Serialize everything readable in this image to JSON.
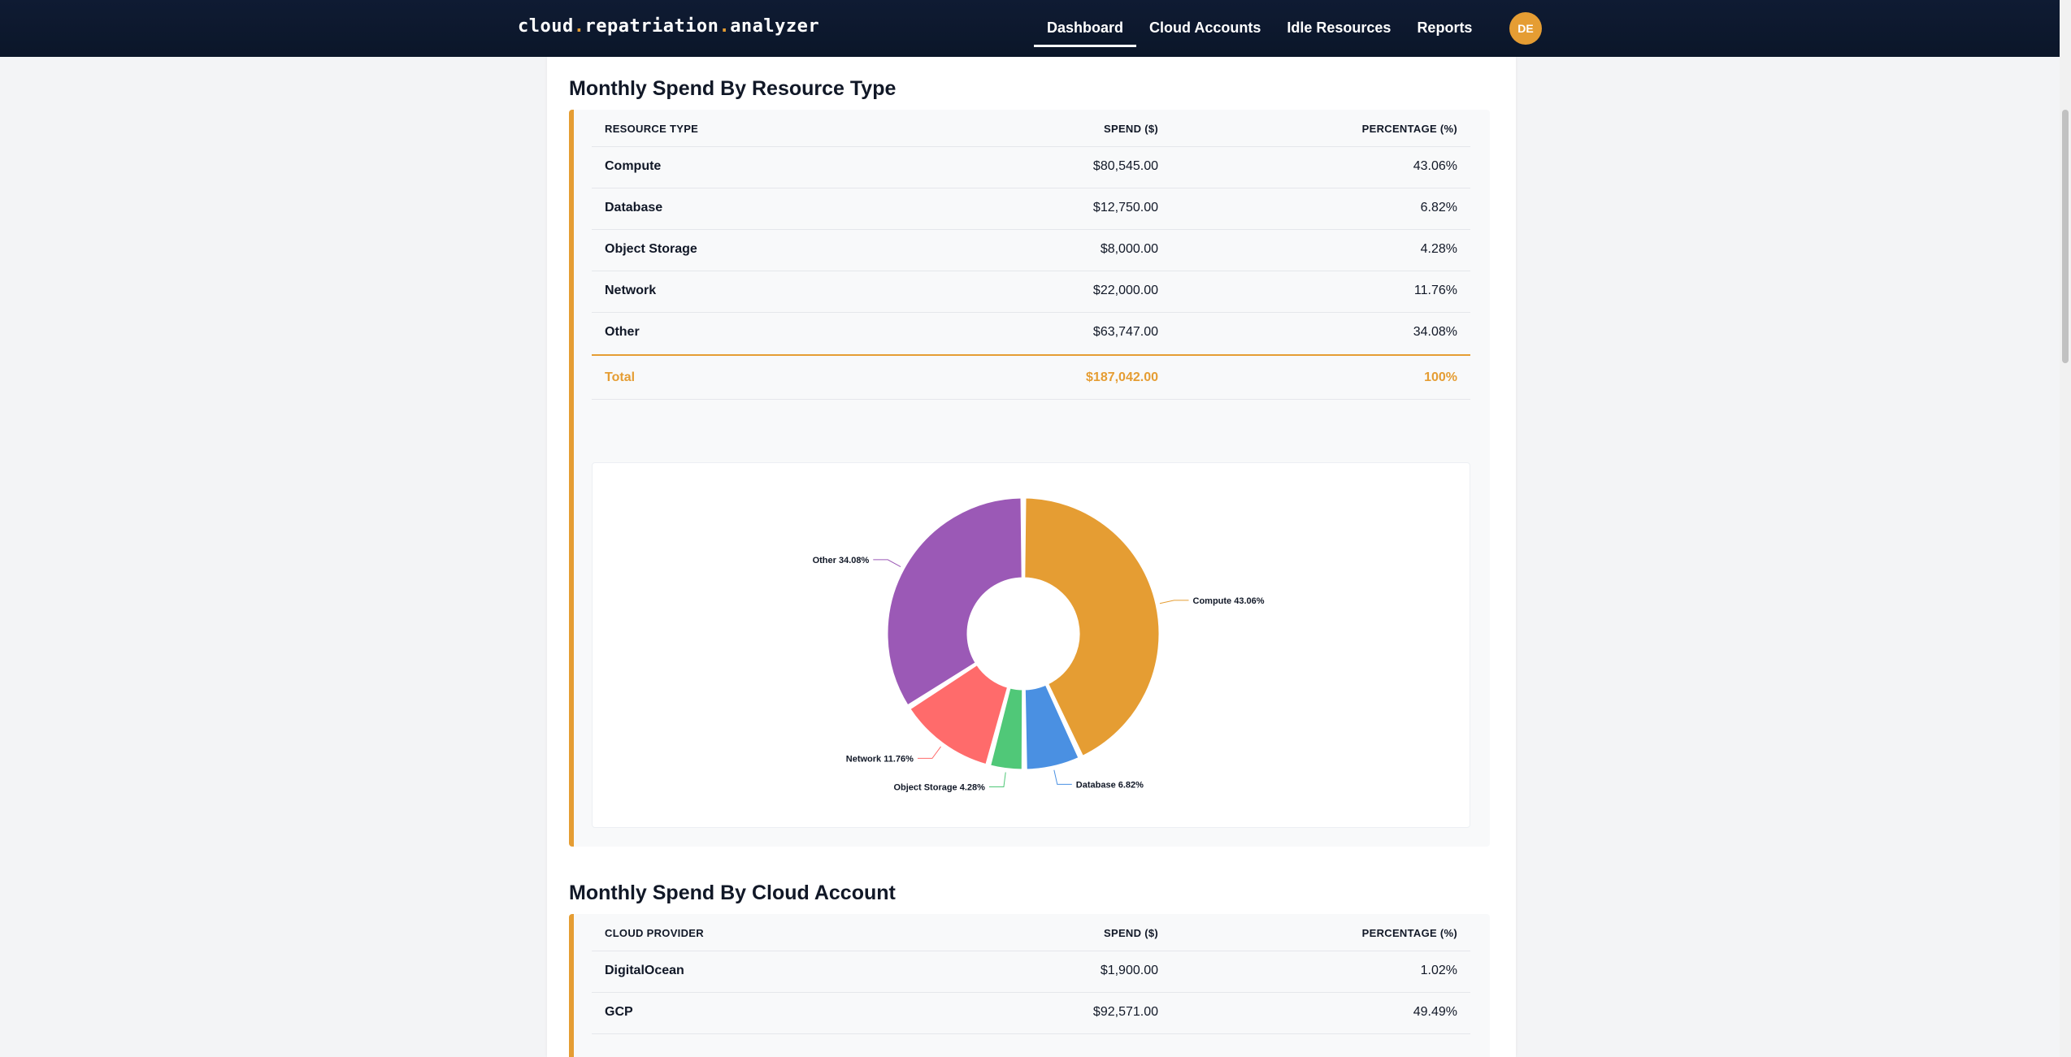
{
  "app": {
    "brand_parts": [
      "cloud",
      ".",
      "repatriation",
      ".",
      "analyzer"
    ],
    "nav": [
      {
        "label": "Dashboard",
        "active": true
      },
      {
        "label": "Cloud Accounts",
        "active": false
      },
      {
        "label": "Idle Resources",
        "active": false
      },
      {
        "label": "Reports",
        "active": false
      }
    ],
    "avatar_initials": "DE",
    "accent_color": "#e59d33"
  },
  "resource_section": {
    "title": "Monthly Spend By Resource Type",
    "headers": [
      "RESOURCE TYPE",
      "SPEND ($)",
      "PERCENTAGE (%)"
    ],
    "rows": [
      {
        "name": "Compute",
        "spend": "$80,545.00",
        "pct": "43.06%"
      },
      {
        "name": "Database",
        "spend": "$12,750.00",
        "pct": "6.82%"
      },
      {
        "name": "Object Storage",
        "spend": "$8,000.00",
        "pct": "4.28%"
      },
      {
        "name": "Network",
        "spend": "$22,000.00",
        "pct": "11.76%"
      },
      {
        "name": "Other",
        "spend": "$63,747.00",
        "pct": "34.08%"
      }
    ],
    "total": {
      "name": "Total",
      "spend": "$187,042.00",
      "pct": "100%"
    }
  },
  "account_section": {
    "title": "Monthly Spend By Cloud Account",
    "headers": [
      "CLOUD PROVIDER",
      "SPEND ($)",
      "PERCENTAGE (%)"
    ],
    "rows": [
      {
        "name": "DigitalOcean",
        "spend": "$1,900.00",
        "pct": "1.02%"
      },
      {
        "name": "GCP",
        "spend": "$92,571.00",
        "pct": "49.49%"
      }
    ]
  },
  "chart_data": {
    "type": "pie",
    "donut": true,
    "title": "",
    "slices": [
      {
        "label": "Compute",
        "value": 43.06,
        "label_text": "Compute 43.06%",
        "color": "#e59d33"
      },
      {
        "label": "Database",
        "value": 6.82,
        "label_text": "Database 6.82%",
        "color": "#4a90e2"
      },
      {
        "label": "Object Storage",
        "value": 4.28,
        "label_text": "Object Storage 4.28%",
        "color": "#50c878"
      },
      {
        "label": "Network",
        "value": 11.76,
        "label_text": "Network 11.76%",
        "color": "#ff6b6b"
      },
      {
        "label": "Other",
        "value": 34.08,
        "label_text": "Other 34.08%",
        "color": "#9b59b6"
      }
    ]
  }
}
